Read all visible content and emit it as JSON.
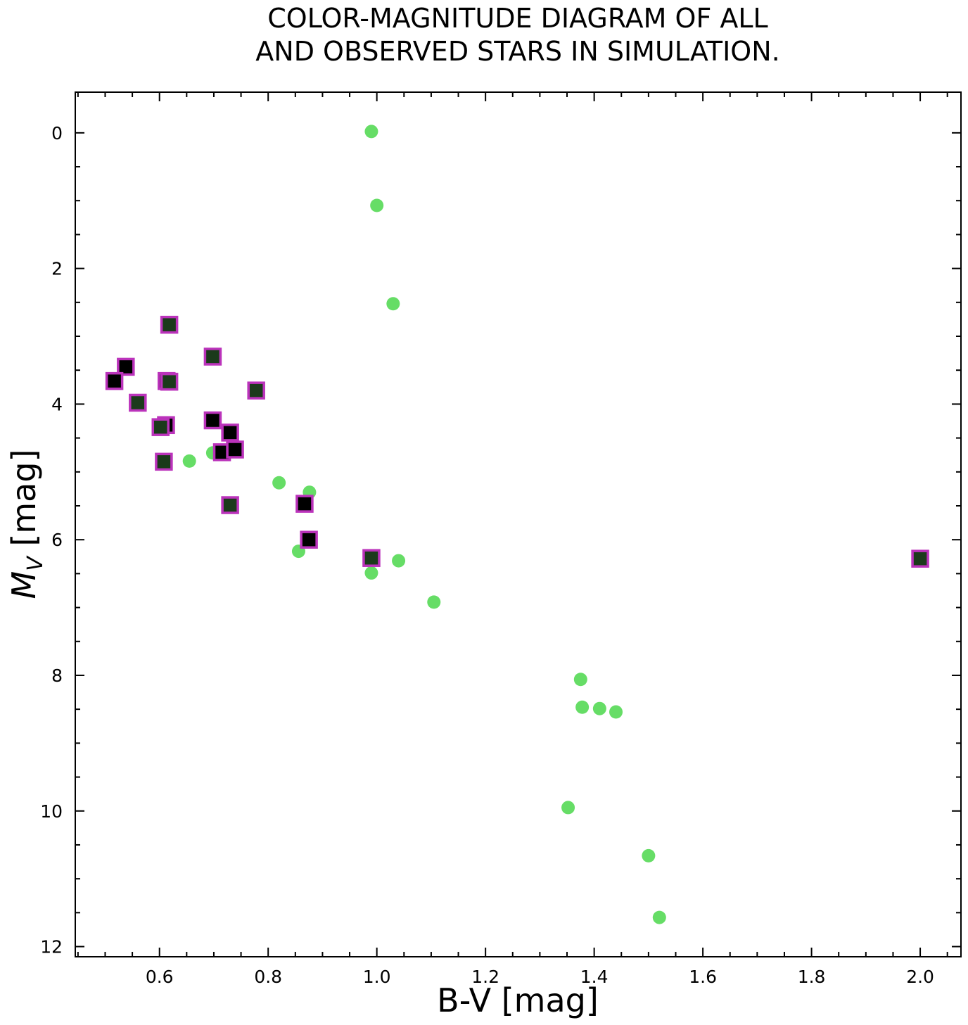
{
  "chart_data": {
    "type": "scatter",
    "title_lines": [
      "COLOR-MAGNITUDE DIAGRAM OF ALL",
      "AND OBSERVED STARS IN SIMULATION."
    ],
    "xlabel": "B-V [mag]",
    "ylabel_main": "M",
    "ylabel_sub": "V",
    "ylabel_unit": " [mag]",
    "xlim": [
      0.445,
      2.075
    ],
    "ylim": [
      12.15,
      -0.6
    ],
    "y_inverted": true,
    "x_ticks": [
      0.6,
      0.8,
      1.0,
      1.2,
      1.4,
      1.6,
      1.8,
      2.0
    ],
    "x_tick_labels": [
      "0.6",
      "0.8",
      "1.0",
      "1.2",
      "1.4",
      "1.6",
      "1.8",
      "2.0"
    ],
    "y_ticks": [
      0,
      2,
      4,
      6,
      8,
      10,
      12
    ],
    "y_tick_labels": [
      "0",
      "2",
      "4",
      "6",
      "8",
      "10",
      "12"
    ],
    "grid": false,
    "colors": {
      "all_stars": "#66dd66",
      "observed_fill_dark": "#000000",
      "observed_fill_green": "#1b3a1b",
      "observed_edge": "#bb33bb"
    },
    "series": [
      {
        "marker": "circle",
        "points": [
          [
            0.99,
            -0.02
          ],
          [
            1.0,
            1.07
          ],
          [
            1.03,
            2.52
          ],
          [
            0.655,
            4.84
          ],
          [
            0.698,
            4.72
          ],
          [
            0.82,
            5.16
          ],
          [
            0.876,
            5.3
          ],
          [
            0.856,
            6.17
          ],
          [
            0.99,
            6.49
          ],
          [
            1.04,
            6.31
          ],
          [
            1.105,
            6.92
          ],
          [
            1.375,
            8.06
          ],
          [
            1.378,
            8.47
          ],
          [
            1.41,
            8.49
          ],
          [
            1.44,
            8.54
          ],
          [
            1.352,
            9.95
          ],
          [
            1.5,
            10.66
          ],
          [
            1.52,
            11.57
          ]
        ]
      },
      {
        "marker": "square",
        "points": [
          [
            0.618,
            2.83,
            "green"
          ],
          [
            0.698,
            3.3,
            "green"
          ],
          [
            0.538,
            3.45,
            "dark"
          ],
          [
            0.517,
            3.66,
            "dark"
          ],
          [
            0.613,
            3.66,
            "dark"
          ],
          [
            0.618,
            3.67,
            "green"
          ],
          [
            0.778,
            3.8,
            "green"
          ],
          [
            0.56,
            3.98,
            "green"
          ],
          [
            0.698,
            4.24,
            "dark"
          ],
          [
            0.612,
            4.31,
            "dark"
          ],
          [
            0.602,
            4.34,
            "green"
          ],
          [
            0.73,
            4.42,
            "dark"
          ],
          [
            0.715,
            4.71,
            "dark"
          ],
          [
            0.739,
            4.67,
            "dark"
          ],
          [
            0.608,
            4.85,
            "green"
          ],
          [
            0.73,
            5.49,
            "green"
          ],
          [
            0.867,
            5.47,
            "dark"
          ],
          [
            0.875,
            6.0,
            "dark"
          ],
          [
            0.99,
            6.27,
            "green"
          ],
          [
            2.0,
            6.28,
            "green"
          ]
        ]
      }
    ]
  }
}
